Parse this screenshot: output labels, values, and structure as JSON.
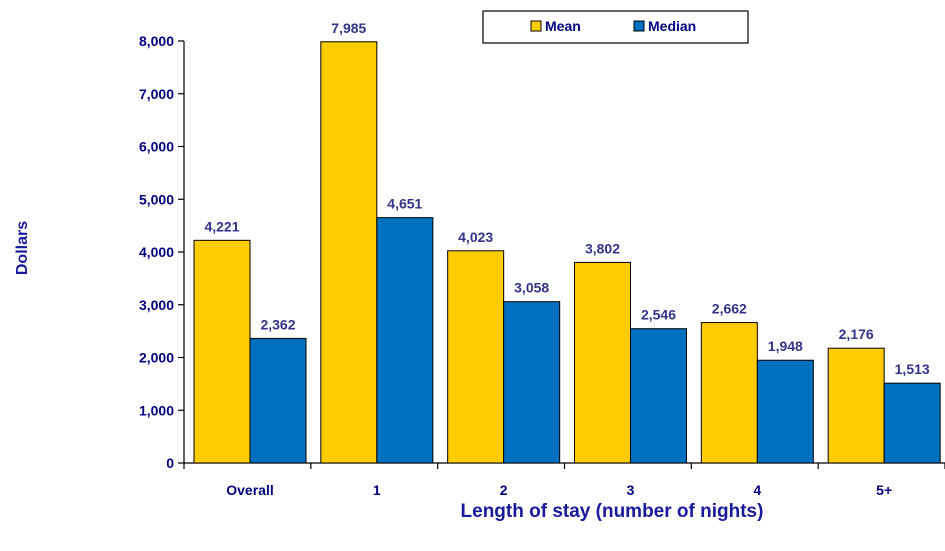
{
  "chart_data": {
    "type": "bar",
    "categories": [
      "Overall",
      "1",
      "2",
      "3",
      "4",
      "5+"
    ],
    "series": [
      {
        "name": "Mean",
        "values": [
          4221,
          7985,
          4023,
          3802,
          2662,
          2176
        ],
        "color": "#FFCC00"
      },
      {
        "name": "Median",
        "values": [
          2362,
          4651,
          3058,
          2546,
          1948,
          1513
        ],
        "color": "#0070C0"
      }
    ],
    "data_labels": [
      [
        "4,221",
        "7,985",
        "4,023",
        "3,802",
        "2,662",
        "2,176"
      ],
      [
        "2,362",
        "4,651",
        "3,058",
        "2,546",
        "1,948",
        "1,513"
      ]
    ],
    "yticks": [
      "0",
      "1,000",
      "2,000",
      "3,000",
      "4,000",
      "5,000",
      "6,000",
      "7,000",
      "8,000"
    ],
    "ylim": [
      0,
      8000
    ],
    "xlabel": "Length of stay (number of nights)",
    "ylabel": "Dollars",
    "grid": false,
    "legend_position": "top-right",
    "legend": [
      "Mean",
      "Median"
    ],
    "text_color": "#000080",
    "label_color": "#33338a"
  }
}
